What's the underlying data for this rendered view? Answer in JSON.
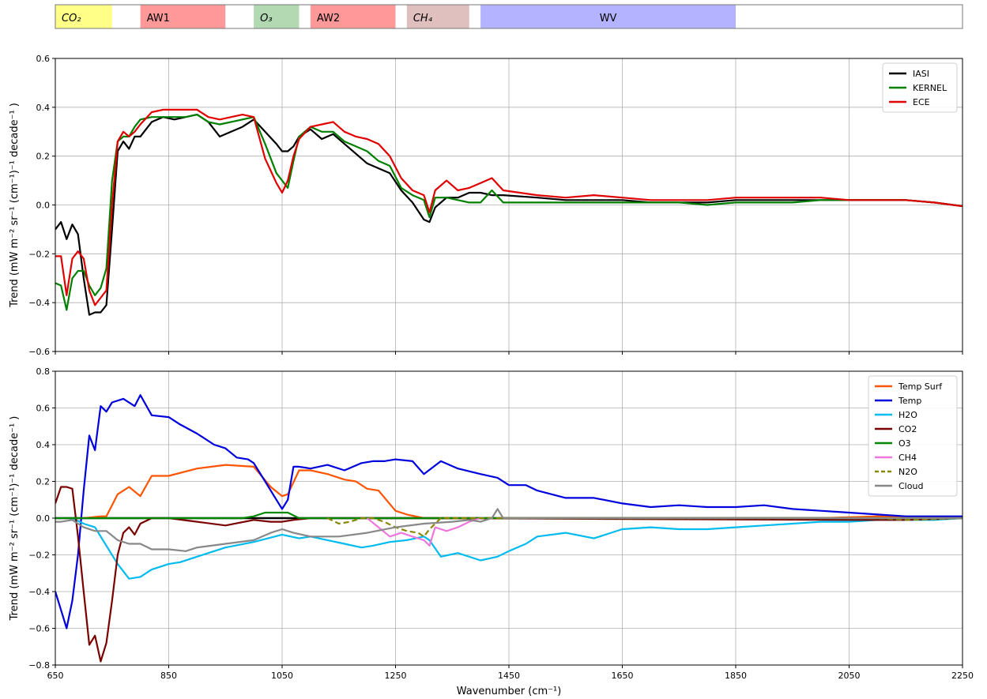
{
  "chart_data": [
    {
      "type": "band-strip",
      "xlim": [
        650,
        2250
      ],
      "bands": [
        {
          "label": "CO₂",
          "start": 650,
          "end": 750,
          "color": "#ffff88",
          "italic": true
        },
        {
          "label": "AW1",
          "start": 800,
          "end": 950,
          "color": "#ff9999",
          "italic": false
        },
        {
          "label": "O₃",
          "start": 1000,
          "end": 1080,
          "color": "#b3d9b3",
          "italic": true
        },
        {
          "label": "AW2",
          "start": 1100,
          "end": 1250,
          "color": "#ff9999",
          "italic": false
        },
        {
          "label": "CH₄",
          "start": 1270,
          "end": 1380,
          "color": "#e0bfbf",
          "italic": true
        },
        {
          "label": "WV",
          "start": 1400,
          "end": 1850,
          "color": "#b3b3ff",
          "italic": false
        }
      ]
    },
    {
      "type": "line",
      "ylabel": "Trend (mW m⁻² sr⁻¹ (cm⁻¹)⁻¹ decade⁻¹ )",
      "xlim": [
        650,
        2250
      ],
      "ylim": [
        -0.6,
        0.6
      ],
      "yticks": [
        -0.6,
        -0.4,
        -0.2,
        0.0,
        0.2,
        0.4,
        0.6
      ],
      "ytick_labels": [
        "−0.6",
        "−0.4",
        "−0.2",
        "0.0",
        "0.2",
        "0.4",
        "0.6"
      ],
      "grid": true,
      "legend": "top-right",
      "series": [
        {
          "name": "IASI",
          "color": "#000000",
          "x": [
            650,
            660,
            670,
            680,
            690,
            700,
            710,
            720,
            730,
            740,
            750,
            760,
            770,
            780,
            790,
            800,
            820,
            840,
            860,
            880,
            900,
            920,
            940,
            960,
            980,
            1000,
            1020,
            1040,
            1050,
            1060,
            1070,
            1080,
            1100,
            1120,
            1140,
            1160,
            1180,
            1200,
            1220,
            1240,
            1260,
            1280,
            1300,
            1310,
            1320,
            1340,
            1360,
            1380,
            1400,
            1420,
            1440,
            1500,
            1550,
            1600,
            1650,
            1700,
            1750,
            1800,
            1850,
            1900,
            1950,
            2000,
            2050,
            2100,
            2150,
            2200,
            2250
          ],
          "y": [
            -0.1,
            -0.07,
            -0.14,
            -0.08,
            -0.12,
            -0.3,
            -0.45,
            -0.44,
            -0.44,
            -0.41,
            -0.1,
            0.22,
            0.26,
            0.23,
            0.28,
            0.28,
            0.34,
            0.36,
            0.35,
            0.36,
            0.37,
            0.34,
            0.28,
            0.3,
            0.32,
            0.35,
            0.3,
            0.25,
            0.22,
            0.22,
            0.24,
            0.28,
            0.31,
            0.27,
            0.29,
            0.25,
            0.21,
            0.17,
            0.15,
            0.13,
            0.06,
            0.01,
            -0.06,
            -0.07,
            -0.01,
            0.03,
            0.03,
            0.05,
            0.05,
            0.04,
            0.04,
            0.03,
            0.02,
            0.02,
            0.02,
            0.01,
            0.01,
            0.01,
            0.02,
            0.02,
            0.02,
            0.02,
            0.02,
            0.02,
            0.02,
            0.01,
            -0.005
          ]
        },
        {
          "name": "KERNEL",
          "color": "#008000",
          "x": [
            650,
            660,
            670,
            680,
            690,
            700,
            710,
            720,
            730,
            740,
            750,
            760,
            770,
            780,
            790,
            800,
            820,
            840,
            860,
            880,
            900,
            920,
            940,
            960,
            980,
            1000,
            1020,
            1040,
            1050,
            1060,
            1070,
            1080,
            1100,
            1120,
            1140,
            1160,
            1180,
            1200,
            1220,
            1240,
            1260,
            1280,
            1300,
            1310,
            1320,
            1340,
            1360,
            1380,
            1400,
            1420,
            1440,
            1500,
            1550,
            1600,
            1650,
            1700,
            1750,
            1800,
            1850,
            1900,
            1950,
            2000,
            2050,
            2100,
            2150,
            2200,
            2250
          ],
          "y": [
            -0.32,
            -0.33,
            -0.43,
            -0.3,
            -0.27,
            -0.27,
            -0.33,
            -0.37,
            -0.34,
            -0.26,
            0.1,
            0.26,
            0.28,
            0.28,
            0.32,
            0.35,
            0.36,
            0.36,
            0.36,
            0.36,
            0.37,
            0.34,
            0.33,
            0.34,
            0.35,
            0.36,
            0.25,
            0.13,
            0.1,
            0.07,
            0.18,
            0.28,
            0.32,
            0.3,
            0.3,
            0.26,
            0.24,
            0.22,
            0.18,
            0.16,
            0.07,
            0.04,
            0.02,
            -0.05,
            0.03,
            0.03,
            0.02,
            0.01,
            0.01,
            0.06,
            0.01,
            0.01,
            0.01,
            0.01,
            0.01,
            0.01,
            0.01,
            0.0,
            0.01,
            0.01,
            0.01,
            0.02,
            0.02,
            0.02,
            0.02,
            0.01,
            -0.005
          ]
        },
        {
          "name": "ECE",
          "color": "#e00000",
          "x": [
            650,
            660,
            670,
            680,
            690,
            700,
            710,
            720,
            730,
            740,
            750,
            760,
            770,
            780,
            790,
            800,
            820,
            840,
            860,
            880,
            900,
            920,
            940,
            960,
            980,
            1000,
            1020,
            1040,
            1050,
            1060,
            1070,
            1080,
            1100,
            1120,
            1140,
            1160,
            1180,
            1200,
            1220,
            1240,
            1260,
            1280,
            1300,
            1310,
            1320,
            1340,
            1360,
            1380,
            1400,
            1420,
            1440,
            1500,
            1550,
            1600,
            1650,
            1700,
            1750,
            1800,
            1850,
            1900,
            1950,
            2000,
            2050,
            2100,
            2150,
            2200,
            2250
          ],
          "y": [
            -0.21,
            -0.21,
            -0.37,
            -0.22,
            -0.19,
            -0.22,
            -0.35,
            -0.41,
            -0.38,
            -0.35,
            0.0,
            0.26,
            0.3,
            0.28,
            0.3,
            0.33,
            0.38,
            0.39,
            0.39,
            0.39,
            0.39,
            0.36,
            0.35,
            0.36,
            0.37,
            0.36,
            0.19,
            0.09,
            0.05,
            0.1,
            0.2,
            0.27,
            0.32,
            0.33,
            0.34,
            0.3,
            0.28,
            0.27,
            0.25,
            0.2,
            0.11,
            0.06,
            0.04,
            -0.03,
            0.06,
            0.1,
            0.06,
            0.07,
            0.09,
            0.11,
            0.06,
            0.04,
            0.03,
            0.04,
            0.03,
            0.02,
            0.02,
            0.02,
            0.03,
            0.03,
            0.03,
            0.03,
            0.02,
            0.02,
            0.02,
            0.01,
            -0.005
          ]
        }
      ]
    },
    {
      "type": "line",
      "ylabel": "Trend (mW m⁻² sr⁻¹ (cm⁻¹)⁻¹ decade⁻¹ )",
      "xlabel": "Wavenumber (cm⁻¹)",
      "xlim": [
        650,
        2250
      ],
      "ylim": [
        -0.8,
        0.8
      ],
      "xticks": [
        650,
        850,
        1050,
        1250,
        1450,
        1650,
        1850,
        2050,
        2250
      ],
      "xtick_labels": [
        "650",
        "850",
        "1050",
        "1250",
        "1450",
        "1650",
        "1850",
        "2050",
        "2250"
      ],
      "yticks": [
        -0.8,
        -0.6,
        -0.4,
        -0.2,
        0.0,
        0.2,
        0.4,
        0.6,
        0.8
      ],
      "ytick_labels": [
        "−0.8",
        "−0.6",
        "−0.4",
        "−0.2",
        "0.0",
        "0.2",
        "0.4",
        "0.6",
        "0.8"
      ],
      "grid": true,
      "legend": "top-right",
      "series": [
        {
          "name": "Temp Surf",
          "color": "#ff5500",
          "dashed": false,
          "x": [
            650,
            700,
            730,
            740,
            760,
            780,
            800,
            820,
            850,
            900,
            950,
            1000,
            1030,
            1050,
            1060,
            1080,
            1100,
            1130,
            1160,
            1180,
            1200,
            1220,
            1250,
            1270,
            1300,
            1350,
            1400,
            2000,
            2100,
            2250
          ],
          "y": [
            0.0,
            0.0,
            0.01,
            0.01,
            0.13,
            0.17,
            0.12,
            0.23,
            0.23,
            0.27,
            0.29,
            0.28,
            0.17,
            0.12,
            0.13,
            0.26,
            0.26,
            0.24,
            0.21,
            0.2,
            0.16,
            0.15,
            0.04,
            0.02,
            0.0,
            0.0,
            0.0,
            0.0,
            0.01,
            0.0
          ]
        },
        {
          "name": "Temp",
          "color": "#0000dd",
          "dashed": false,
          "x": [
            650,
            660,
            670,
            680,
            690,
            700,
            710,
            720,
            730,
            740,
            750,
            770,
            790,
            800,
            820,
            850,
            870,
            900,
            930,
            950,
            970,
            990,
            1000,
            1020,
            1040,
            1050,
            1060,
            1070,
            1080,
            1100,
            1130,
            1160,
            1190,
            1210,
            1230,
            1250,
            1280,
            1300,
            1330,
            1360,
            1400,
            1430,
            1450,
            1480,
            1500,
            1550,
            1600,
            1650,
            1700,
            1750,
            1800,
            1850,
            1900,
            1950,
            2000,
            2050,
            2100,
            2150,
            2200,
            2250
          ],
          "y": [
            -0.4,
            -0.5,
            -0.6,
            -0.45,
            -0.2,
            0.15,
            0.45,
            0.37,
            0.61,
            0.58,
            0.63,
            0.65,
            0.61,
            0.67,
            0.56,
            0.55,
            0.51,
            0.46,
            0.4,
            0.38,
            0.33,
            0.32,
            0.3,
            0.2,
            0.1,
            0.05,
            0.1,
            0.28,
            0.28,
            0.27,
            0.29,
            0.26,
            0.3,
            0.31,
            0.31,
            0.32,
            0.31,
            0.24,
            0.31,
            0.27,
            0.24,
            0.22,
            0.18,
            0.18,
            0.15,
            0.11,
            0.11,
            0.08,
            0.06,
            0.07,
            0.06,
            0.06,
            0.07,
            0.05,
            0.04,
            0.03,
            0.02,
            0.01,
            0.01,
            0.01
          ]
        },
        {
          "name": "H2O",
          "color": "#00bbee",
          "dashed": false,
          "x": [
            650,
            680,
            700,
            720,
            740,
            760,
            780,
            800,
            820,
            850,
            870,
            900,
            950,
            1000,
            1050,
            1080,
            1100,
            1130,
            1160,
            1190,
            1210,
            1240,
            1270,
            1300,
            1310,
            1330,
            1360,
            1400,
            1430,
            1450,
            1480,
            1500,
            1550,
            1600,
            1650,
            1700,
            1750,
            1800,
            1850,
            1900,
            1950,
            2000,
            2050,
            2100,
            2150,
            2200,
            2250
          ],
          "y": [
            0.0,
            0.0,
            -0.03,
            -0.05,
            -0.15,
            -0.25,
            -0.33,
            -0.32,
            -0.28,
            -0.25,
            -0.24,
            -0.21,
            -0.16,
            -0.13,
            -0.09,
            -0.11,
            -0.1,
            -0.12,
            -0.14,
            -0.16,
            -0.15,
            -0.13,
            -0.12,
            -0.1,
            -0.12,
            -0.21,
            -0.19,
            -0.23,
            -0.21,
            -0.18,
            -0.14,
            -0.1,
            -0.08,
            -0.11,
            -0.06,
            -0.05,
            -0.06,
            -0.06,
            -0.05,
            -0.04,
            -0.03,
            -0.02,
            -0.02,
            -0.01,
            -0.01,
            -0.01,
            0.0
          ]
        },
        {
          "name": "CO2",
          "color": "#7a0000",
          "dashed": false,
          "x": [
            650,
            660,
            670,
            680,
            690,
            700,
            710,
            720,
            730,
            740,
            750,
            760,
            770,
            780,
            790,
            800,
            820,
            850,
            900,
            950,
            1000,
            1030,
            1050,
            1070,
            1100,
            1150,
            1250,
            1300,
            2050,
            2100,
            2150,
            2250
          ],
          "y": [
            0.08,
            0.17,
            0.17,
            0.16,
            -0.1,
            -0.4,
            -0.69,
            -0.64,
            -0.78,
            -0.68,
            -0.45,
            -0.2,
            -0.08,
            -0.05,
            -0.09,
            -0.03,
            0.0,
            0.0,
            -0.02,
            -0.04,
            -0.01,
            -0.02,
            -0.02,
            -0.01,
            0.0,
            0.0,
            0.0,
            0.0,
            -0.01,
            -0.01,
            -0.01,
            0.0
          ]
        },
        {
          "name": "O3",
          "color": "#008800",
          "dashed": false,
          "x": [
            650,
            980,
            1000,
            1020,
            1040,
            1060,
            1080,
            1100,
            2250
          ],
          "y": [
            0.0,
            0.0,
            0.01,
            0.03,
            0.03,
            0.03,
            0.0,
            0.0,
            0.0
          ]
        },
        {
          "name": "CH4",
          "color": "#ee77dd",
          "dashed": false,
          "x": [
            1200,
            1220,
            1240,
            1260,
            1280,
            1300,
            1310,
            1320,
            1340,
            1360,
            1380,
            1400
          ],
          "y": [
            0.0,
            -0.05,
            -0.1,
            -0.08,
            -0.1,
            -0.12,
            -0.15,
            -0.05,
            -0.07,
            -0.05,
            -0.02,
            0.0
          ]
        },
        {
          "name": "N2O",
          "color": "#888800",
          "dashed": true,
          "x": [
            1130,
            1150,
            1170,
            1190,
            1210,
            1230,
            1250,
            1270,
            1290,
            1300,
            1310,
            1330,
            2100,
            2150,
            2250
          ],
          "y": [
            0.0,
            -0.03,
            -0.02,
            0.0,
            0.0,
            -0.02,
            -0.05,
            -0.07,
            -0.08,
            -0.1,
            -0.06,
            0.0,
            0.0,
            -0.01,
            0.0
          ]
        },
        {
          "name": "Cloud",
          "color": "#888888",
          "dashed": false,
          "x": [
            650,
            660,
            680,
            700,
            720,
            740,
            760,
            780,
            800,
            820,
            850,
            880,
            900,
            950,
            1000,
            1030,
            1050,
            1070,
            1100,
            1150,
            1200,
            1250,
            1300,
            1350,
            1380,
            1400,
            1420,
            1430,
            1440,
            1500,
            1800,
            2000,
            2250
          ],
          "y": [
            -0.02,
            -0.02,
            -0.01,
            -0.05,
            -0.07,
            -0.07,
            -0.12,
            -0.14,
            -0.14,
            -0.17,
            -0.17,
            -0.18,
            -0.16,
            -0.14,
            -0.12,
            -0.08,
            -0.06,
            -0.08,
            -0.1,
            -0.1,
            -0.08,
            -0.05,
            -0.03,
            -0.02,
            -0.01,
            -0.02,
            0.0,
            0.05,
            0.0,
            0.0,
            0.0,
            0.0,
            0.0
          ]
        }
      ]
    }
  ]
}
